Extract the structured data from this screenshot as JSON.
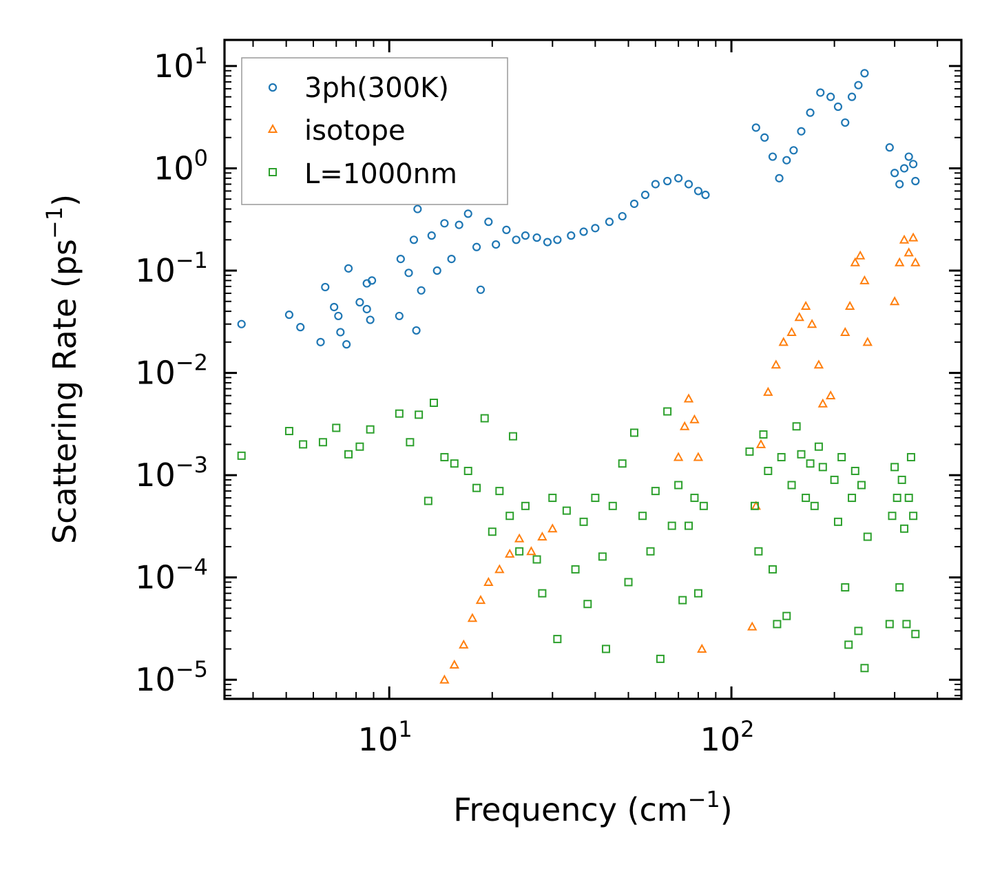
{
  "chart_data": {
    "type": "scatter",
    "title": "",
    "xlabel": "Frequency (cm",
    "xlabel_sup": "−1",
    "xlabel_end": ")",
    "ylabel": "Scattering Rate (ps",
    "ylabel_sup": "−1",
    "ylabel_end": ")",
    "xscale": "log",
    "yscale": "log",
    "xlim": [
      3.3,
      470
    ],
    "ylim": [
      6.5e-06,
      18
    ],
    "x_ticks": [
      {
        "value": 10,
        "base": "10",
        "exp": "1"
      },
      {
        "value": 100,
        "base": "10",
        "exp": "2"
      }
    ],
    "y_ticks": [
      {
        "value": 1e-05,
        "base": "10",
        "exp": "−5"
      },
      {
        "value": 0.0001,
        "base": "10",
        "exp": "−4"
      },
      {
        "value": 0.001,
        "base": "10",
        "exp": "−3"
      },
      {
        "value": 0.01,
        "base": "10",
        "exp": "−2"
      },
      {
        "value": 0.1,
        "base": "10",
        "exp": "−1"
      },
      {
        "value": 1,
        "base": "10",
        "exp": "0"
      },
      {
        "value": 10,
        "base": "10",
        "exp": "1"
      }
    ],
    "legend_position": "top-left",
    "series": [
      {
        "name": "3ph(300K)",
        "marker": "circle",
        "color": "#1f77b4",
        "points": [
          [
            3.7,
            0.03
          ],
          [
            5.1,
            0.037
          ],
          [
            5.5,
            0.028
          ],
          [
            6.3,
            0.02
          ],
          [
            6.5,
            0.069
          ],
          [
            6.9,
            0.044
          ],
          [
            7.1,
            0.036
          ],
          [
            7.2,
            0.025
          ],
          [
            7.5,
            0.019
          ],
          [
            7.6,
            0.105
          ],
          [
            8.2,
            0.049
          ],
          [
            8.6,
            0.075
          ],
          [
            8.6,
            0.042
          ],
          [
            8.8,
            0.033
          ],
          [
            8.9,
            0.08
          ],
          [
            10.7,
            0.036
          ],
          [
            10.8,
            0.13
          ],
          [
            11.4,
            0.095
          ],
          [
            11.8,
            0.2
          ],
          [
            12.0,
            0.026
          ],
          [
            12.1,
            0.4
          ],
          [
            12.4,
            0.064
          ],
          [
            13.3,
            0.22
          ],
          [
            13.8,
            0.1
          ],
          [
            14.5,
            0.29
          ],
          [
            15.2,
            0.13
          ],
          [
            16.0,
            0.28
          ],
          [
            17.0,
            0.36
          ],
          [
            18.0,
            0.17
          ],
          [
            18.5,
            0.065
          ],
          [
            19.5,
            0.3
          ],
          [
            20.5,
            0.18
          ],
          [
            22.0,
            0.25
          ],
          [
            23.5,
            0.2
          ],
          [
            25.0,
            0.22
          ],
          [
            27.0,
            0.21
          ],
          [
            29.0,
            0.19
          ],
          [
            31.0,
            0.2
          ],
          [
            34.0,
            0.22
          ],
          [
            37.0,
            0.24
          ],
          [
            40.0,
            0.26
          ],
          [
            44.0,
            0.3
          ],
          [
            48.0,
            0.34
          ],
          [
            52.0,
            0.45
          ],
          [
            56.0,
            0.55
          ],
          [
            60.0,
            0.7
          ],
          [
            65.0,
            0.75
          ],
          [
            70.0,
            0.8
          ],
          [
            75.0,
            0.7
          ],
          [
            80.0,
            0.6
          ],
          [
            84.0,
            0.55
          ],
          [
            118,
            2.5
          ],
          [
            125,
            2.0
          ],
          [
            132,
            1.3
          ],
          [
            138,
            0.8
          ],
          [
            145,
            1.2
          ],
          [
            152,
            1.5
          ],
          [
            160,
            2.3
          ],
          [
            170,
            3.5
          ],
          [
            182,
            5.5
          ],
          [
            195,
            5.0
          ],
          [
            205,
            4.0
          ],
          [
            215,
            2.8
          ],
          [
            225,
            5.0
          ],
          [
            235,
            6.5
          ],
          [
            245,
            8.5
          ],
          [
            290,
            1.6
          ],
          [
            300,
            0.9
          ],
          [
            310,
            0.7
          ],
          [
            320,
            1.0
          ],
          [
            330,
            1.3
          ],
          [
            340,
            1.1
          ],
          [
            345,
            0.75
          ]
        ]
      },
      {
        "name": "isotope",
        "marker": "triangle",
        "color": "#ff7f0e",
        "points": [
          [
            14.5,
            1e-05
          ],
          [
            15.5,
            1.4e-05
          ],
          [
            16.5,
            2.2e-05
          ],
          [
            17.5,
            4e-05
          ],
          [
            18.5,
            6e-05
          ],
          [
            19.5,
            9e-05
          ],
          [
            21.0,
            0.00012
          ],
          [
            22.5,
            0.00017
          ],
          [
            24.0,
            0.00024
          ],
          [
            26.0,
            0.00018
          ],
          [
            28.0,
            0.00025
          ],
          [
            30.0,
            0.0003
          ],
          [
            70.0,
            0.0015
          ],
          [
            73.0,
            0.003
          ],
          [
            75.0,
            0.0056
          ],
          [
            78.0,
            0.0035
          ],
          [
            80.0,
            0.0015
          ],
          [
            82.0,
            2e-05
          ],
          [
            115,
            3.3e-05
          ],
          [
            118,
            0.0005
          ],
          [
            122,
            0.002
          ],
          [
            128,
            0.0065
          ],
          [
            135,
            0.012
          ],
          [
            142,
            0.02
          ],
          [
            150,
            0.025
          ],
          [
            158,
            0.035
          ],
          [
            165,
            0.045
          ],
          [
            172,
            0.03
          ],
          [
            180,
            0.012
          ],
          [
            185,
            0.005
          ],
          [
            195,
            0.006
          ],
          [
            215,
            0.025
          ],
          [
            222,
            0.045
          ],
          [
            230,
            0.12
          ],
          [
            238,
            0.14
          ],
          [
            245,
            0.08
          ],
          [
            250,
            0.02
          ],
          [
            300,
            0.05
          ],
          [
            310,
            0.12
          ],
          [
            320,
            0.2
          ],
          [
            330,
            0.15
          ],
          [
            340,
            0.21
          ],
          [
            345,
            0.12
          ]
        ]
      },
      {
        "name": "L=1000nm",
        "marker": "square",
        "color": "#2ca02c",
        "points": [
          [
            3.7,
            0.00155
          ],
          [
            5.1,
            0.0027
          ],
          [
            5.6,
            0.002
          ],
          [
            6.4,
            0.0021
          ],
          [
            7.0,
            0.0029
          ],
          [
            7.6,
            0.0016
          ],
          [
            8.2,
            0.0019
          ],
          [
            8.8,
            0.0028
          ],
          [
            10.7,
            0.004
          ],
          [
            11.5,
            0.0021
          ],
          [
            12.2,
            0.0039
          ],
          [
            13.0,
            0.00056
          ],
          [
            13.5,
            0.0051
          ],
          [
            14.5,
            0.0015
          ],
          [
            15.5,
            0.0013
          ],
          [
            17.0,
            0.0011
          ],
          [
            18.0,
            0.00075
          ],
          [
            19.0,
            0.0036
          ],
          [
            20.0,
            0.00028
          ],
          [
            21.0,
            0.0007
          ],
          [
            22.5,
            0.0004
          ],
          [
            23.0,
            0.0024
          ],
          [
            24.0,
            0.00018
          ],
          [
            25.0,
            0.0005
          ],
          [
            27.0,
            0.00015
          ],
          [
            28.0,
            7e-05
          ],
          [
            30.0,
            0.0006
          ],
          [
            31.0,
            2.5e-05
          ],
          [
            33.0,
            0.00045
          ],
          [
            35.0,
            0.00012
          ],
          [
            37.0,
            0.00035
          ],
          [
            38.0,
            5.5e-05
          ],
          [
            40.0,
            0.0006
          ],
          [
            42.0,
            0.00016
          ],
          [
            43.0,
            2e-05
          ],
          [
            45.0,
            0.0005
          ],
          [
            48.0,
            0.0013
          ],
          [
            50.0,
            9e-05
          ],
          [
            52.0,
            0.0026
          ],
          [
            55.0,
            0.0004
          ],
          [
            58.0,
            0.00018
          ],
          [
            60.0,
            0.0007
          ],
          [
            62.0,
            1.6e-05
          ],
          [
            65.0,
            0.0042
          ],
          [
            67.0,
            0.00032
          ],
          [
            70.0,
            0.0008
          ],
          [
            72.0,
            6e-05
          ],
          [
            75.0,
            0.00032
          ],
          [
            78.0,
            0.0006
          ],
          [
            80.0,
            7e-05
          ],
          [
            83.0,
            0.0005
          ],
          [
            113,
            0.0017
          ],
          [
            117,
            0.0005
          ],
          [
            120,
            0.00018
          ],
          [
            124,
            0.0025
          ],
          [
            128,
            0.0011
          ],
          [
            132,
            0.00012
          ],
          [
            136,
            3.5e-05
          ],
          [
            140,
            0.0015
          ],
          [
            145,
            4.2e-05
          ],
          [
            150,
            0.0008
          ],
          [
            155,
            0.003
          ],
          [
            160,
            0.0016
          ],
          [
            165,
            0.0006
          ],
          [
            170,
            0.0013
          ],
          [
            175,
            0.0005
          ],
          [
            180,
            0.0019
          ],
          [
            185,
            0.0012
          ],
          [
            200,
            0.0009
          ],
          [
            205,
            0.00035
          ],
          [
            210,
            0.0015
          ],
          [
            215,
            8e-05
          ],
          [
            220,
            2.2e-05
          ],
          [
            225,
            0.0006
          ],
          [
            230,
            0.0011
          ],
          [
            235,
            3e-05
          ],
          [
            240,
            0.0008
          ],
          [
            245,
            1.3e-05
          ],
          [
            250,
            0.00025
          ],
          [
            290,
            3.5e-05
          ],
          [
            295,
            0.0004
          ],
          [
            300,
            0.0012
          ],
          [
            305,
            0.0006
          ],
          [
            310,
            8e-05
          ],
          [
            315,
            0.0009
          ],
          [
            320,
            0.0003
          ],
          [
            325,
            3.5e-05
          ],
          [
            330,
            0.0006
          ],
          [
            335,
            0.0015
          ],
          [
            340,
            0.0004
          ],
          [
            345,
            2.8e-05
          ]
        ]
      }
    ]
  }
}
